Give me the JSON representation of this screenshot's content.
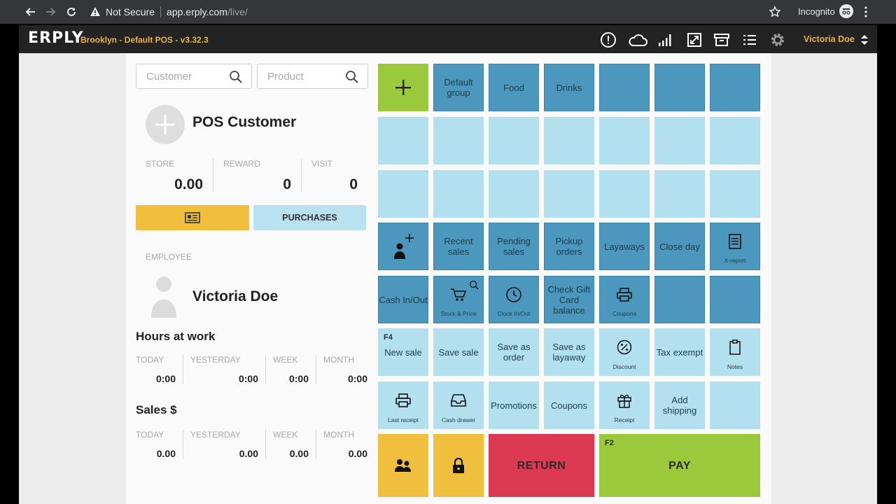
{
  "browser": {
    "security_label": "Not Secure",
    "url_host": "app.erply.com",
    "url_path": "/live/",
    "profile_label": "Incognito"
  },
  "header": {
    "logo": "ERPLY",
    "store_title": "Brooklyn - Default POS - v3.32.3",
    "user_name": "Victoria Doe",
    "icons": [
      "alert-icon",
      "cloud-icon",
      "signal-icon",
      "resize-icon",
      "archive-icon",
      "list-icon",
      "gear-icon"
    ]
  },
  "left": {
    "customer_placeholder": "Customer",
    "product_placeholder": "Product",
    "customer_name": "POS Customer",
    "stats": {
      "store_label": "STORE",
      "store_value": "0.00",
      "reward_label": "REWARD",
      "reward_value": "0",
      "visit_label": "VISIT",
      "visit_value": "0"
    },
    "purchases_label": "PURCHASES",
    "employee_label": "EMPLOYEE",
    "employee_name": "Victoria Doe",
    "hours": {
      "title": "Hours at work",
      "today_label": "TODAY",
      "today_value": "0:00",
      "yesterday_label": "YESTERDAY",
      "yesterday_value": "0:00",
      "week_label": "WEEK",
      "week_value": "0:00",
      "month_label": "MONTH",
      "month_value": "0:00"
    },
    "sales": {
      "title": "Sales $",
      "today_label": "TODAY",
      "today_value": "0.00",
      "yesterday_label": "YESTERDAY",
      "yesterday_value": "0.00",
      "week_label": "WEEK",
      "week_value": "0.00",
      "month_label": "MONTH",
      "month_value": "0.00"
    }
  },
  "tiles": {
    "default_group": "Default group",
    "food": "Food",
    "drinks": "Drinks",
    "recent_sales": "Recent sales",
    "pending_sales": "Pending sales",
    "pickup_orders": "Pickup orders",
    "layaways": "Layaways",
    "close_day": "Close day",
    "x_report": "X-report",
    "cash_inout": "Cash In/Out",
    "stock_price": "Stock & Price",
    "clock_inout": "Clock In/Out",
    "check_gift_card": "Check Gift Card balance",
    "coupons_small": "Coupons",
    "f4_key": "F4",
    "new_sale": "New sale",
    "save_sale": "Save sale",
    "save_order": "Save as order",
    "save_layaway": "Save as layaway",
    "discount": "Discount",
    "tax_exempt": "Tax exempt",
    "notes": "Notes",
    "last_receipt": "Last receipt",
    "cash_drawer": "Cash drawer",
    "promotions": "Promotions",
    "coupons": "Coupons",
    "receipt": "Receipt",
    "add_shipping": "Add shipping",
    "return": "RETURN",
    "f2_key": "F2",
    "pay": "PAY"
  },
  "colors": {
    "accent_yellow": "#f0bf3e",
    "tile_dark": "#4b97bd",
    "tile_light": "#b3e0ee",
    "tile_green": "#9ac93c",
    "tile_red": "#dc3a52"
  }
}
